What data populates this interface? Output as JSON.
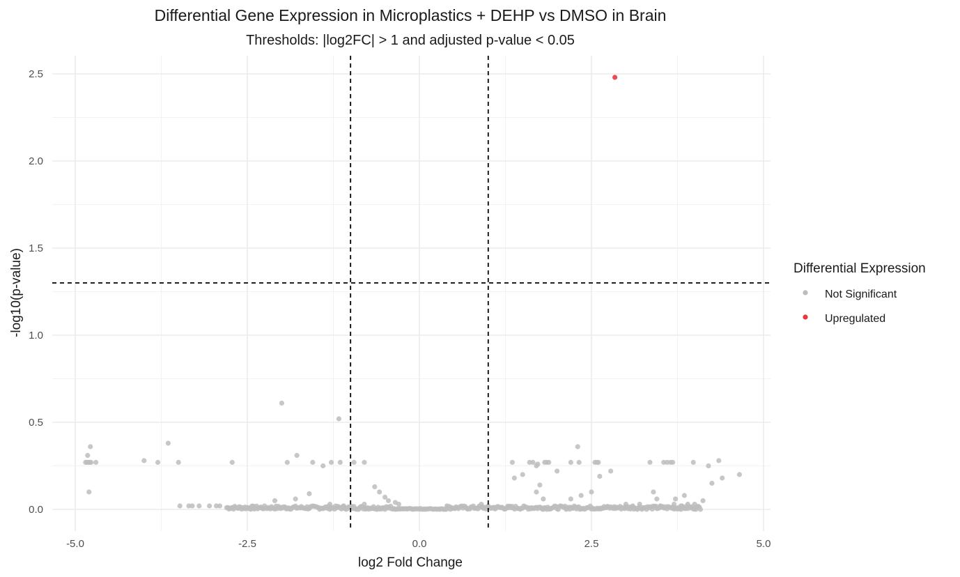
{
  "chart_data": {
    "type": "scatter",
    "title": "Differential Gene Expression in Microplastics + DEHP vs DMSO in Brain",
    "subtitle": "Thresholds: |log2FC| > 1 and adjusted p-value < 0.05",
    "xlabel": "log2 Fold Change",
    "ylabel": "-log10(p-value)",
    "xlim": [
      -5.3,
      5.2
    ],
    "ylim": [
      -0.12,
      2.6
    ],
    "x_ticks": [
      -5.0,
      -2.5,
      0.0,
      2.5,
      5.0
    ],
    "x_tick_labels": [
      "-5.0",
      "-2.5",
      "0.0",
      "2.5",
      "5.0"
    ],
    "y_ticks": [
      0.0,
      0.5,
      1.0,
      1.5,
      2.0,
      2.5
    ],
    "y_tick_labels": [
      "0.0",
      "0.5",
      "1.0",
      "1.5",
      "2.0",
      "2.5"
    ],
    "grid": true,
    "threshold_lines": {
      "vertical": [
        -1,
        1
      ],
      "horizontal": [
        1.3
      ]
    },
    "legend": {
      "title": "Differential Expression",
      "position": "right",
      "entries": [
        {
          "label": "Not Significant",
          "color": "#bdbdbd"
        },
        {
          "label": "Upregulated",
          "color": "#e8383d"
        }
      ]
    },
    "series": [
      {
        "name": "Not Significant",
        "color": "#bdbdbd",
        "points": [
          [
            -4.85,
            0.27
          ],
          [
            -4.83,
            0.27
          ],
          [
            -4.81,
            0.27
          ],
          [
            -4.79,
            0.27
          ],
          [
            -4.77,
            0.27
          ],
          [
            -4.82,
            0.31
          ],
          [
            -4.78,
            0.36
          ],
          [
            -4.8,
            0.1
          ],
          [
            -4.7,
            0.27
          ],
          [
            -4.0,
            0.28
          ],
          [
            -3.8,
            0.27
          ],
          [
            -3.65,
            0.38
          ],
          [
            -3.5,
            0.27
          ],
          [
            -3.48,
            0.02
          ],
          [
            -3.35,
            0.02
          ],
          [
            -3.3,
            0.02
          ],
          [
            -3.2,
            0.02
          ],
          [
            -3.05,
            0.02
          ],
          [
            -2.95,
            0.02
          ],
          [
            -2.9,
            0.02
          ],
          [
            -2.72,
            0.27
          ],
          [
            -2.0,
            0.61
          ],
          [
            -1.92,
            0.27
          ],
          [
            -1.78,
            0.31
          ],
          [
            -1.55,
            0.27
          ],
          [
            -1.4,
            0.25
          ],
          [
            -1.28,
            0.27
          ],
          [
            -1.17,
            0.52
          ],
          [
            -1.15,
            0.27
          ],
          [
            -0.95,
            0.27
          ],
          [
            -0.8,
            0.27
          ],
          [
            -0.65,
            0.13
          ],
          [
            -0.58,
            0.1
          ],
          [
            -2.1,
            0.05
          ],
          [
            -1.8,
            0.06
          ],
          [
            -1.6,
            0.09
          ],
          [
            -0.5,
            0.07
          ],
          [
            -0.45,
            0.05
          ],
          [
            -0.35,
            0.04
          ],
          [
            1.35,
            0.27
          ],
          [
            1.38,
            0.18
          ],
          [
            1.5,
            0.2
          ],
          [
            1.6,
            0.27
          ],
          [
            1.65,
            0.27
          ],
          [
            1.7,
            0.25
          ],
          [
            1.72,
            0.26
          ],
          [
            1.75,
            0.14
          ],
          [
            1.82,
            0.27
          ],
          [
            1.85,
            0.27
          ],
          [
            1.88,
            0.27
          ],
          [
            1.7,
            0.1
          ],
          [
            1.8,
            0.06
          ],
          [
            2.0,
            0.22
          ],
          [
            2.2,
            0.27
          ],
          [
            2.3,
            0.36
          ],
          [
            2.32,
            0.27
          ],
          [
            2.55,
            0.27
          ],
          [
            2.58,
            0.27
          ],
          [
            2.6,
            0.27
          ],
          [
            2.62,
            0.19
          ],
          [
            2.78,
            0.22
          ],
          [
            2.35,
            0.08
          ],
          [
            2.2,
            0.06
          ],
          [
            2.5,
            0.1
          ],
          [
            3.35,
            0.27
          ],
          [
            3.4,
            0.1
          ],
          [
            3.45,
            0.06
          ],
          [
            3.55,
            0.27
          ],
          [
            3.6,
            0.27
          ],
          [
            3.68,
            0.27
          ],
          [
            3.65,
            0.27
          ],
          [
            3.72,
            0.06
          ],
          [
            3.85,
            0.08
          ],
          [
            3.98,
            0.27
          ],
          [
            4.12,
            0.05
          ],
          [
            4.2,
            0.25
          ],
          [
            4.25,
            0.15
          ],
          [
            4.35,
            0.28
          ],
          [
            4.4,
            0.18
          ],
          [
            4.65,
            0.2
          ],
          [
            3.0,
            0.03
          ],
          [
            3.2,
            0.03
          ],
          [
            3.7,
            0.03
          ],
          [
            3.9,
            0.03
          ],
          [
            4.0,
            0.03
          ],
          [
            3.1,
            0.02
          ],
          [
            3.5,
            0.02
          ],
          [
            3.8,
            0.02
          ],
          [
            0.4,
            0.02
          ],
          [
            0.9,
            0.03
          ],
          [
            1.1,
            0.01
          ],
          [
            1.3,
            0.01
          ],
          [
            0.7,
            0.005
          ],
          [
            -0.8,
            0.03
          ],
          [
            -1.1,
            0.02
          ],
          [
            -1.3,
            0.03
          ],
          [
            -0.3,
            0.03
          ]
        ],
        "dense_band": {
          "x_range": [
            -2.8,
            2.6
          ],
          "y": 0.02,
          "note": ""
        },
        "dense_band_2": {
          "x_range": [
            2.6,
            4.1
          ],
          "y": 0.02
        }
      },
      {
        "name": "Upregulated",
        "color": "#e8383d",
        "points": [
          [
            2.84,
            2.48
          ]
        ]
      }
    ]
  }
}
